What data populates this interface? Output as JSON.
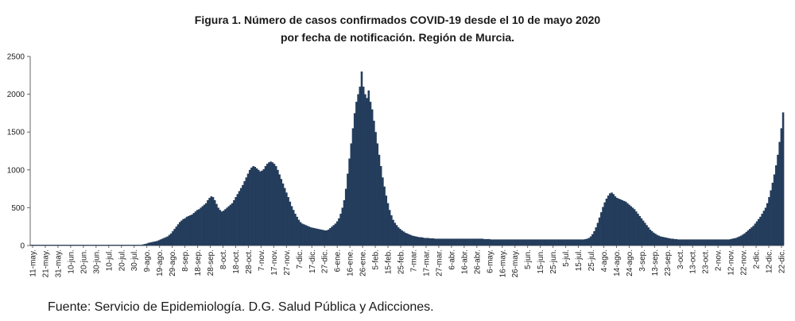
{
  "title_line1": "Figura 1. Número de casos confirmados COVID-19 desde el 10 de mayo 2020",
  "title_line2": "por fecha de notificación. Región de Murcia.",
  "source": "Fuente: Servicio de Epidemiología. D.G. Salud Pública y Adicciones.",
  "bar_color": "#243d5c",
  "chart_data": {
    "type": "bar",
    "xlabel": "",
    "ylabel": "",
    "ylim": [
      0,
      2500
    ],
    "yticks": [
      0,
      500,
      1000,
      1500,
      2000,
      2500
    ],
    "grid": false,
    "legend": "none",
    "tick_labels": [
      "11-may.",
      "21-may.",
      "31-may.",
      "10-jun.",
      "20-jun.",
      "30-jun.",
      "10-jul.",
      "20-jul.",
      "30-jul.",
      "9-ago.",
      "19-ago.",
      "29-ago.",
      "8-sep.",
      "18-sep.",
      "28-sep.",
      "8-oct.",
      "18-oct.",
      "28-oct.",
      "7-nov.",
      "17-nov.",
      "27-nov.",
      "7-dic.",
      "17-dic.",
      "27-dic.",
      "6-ene.",
      "16-ene.",
      "26-ene.",
      "5-feb.",
      "15-feb.",
      "25-feb.",
      "7-mar.",
      "17-mar.",
      "27-mar.",
      "6-abr.",
      "16-abr.",
      "26-abr.",
      "6-may.",
      "16-may.",
      "26-may.",
      "5-jun.",
      "15-jun.",
      "25-jun.",
      "5-jul.",
      "15-jul.",
      "25-jul.",
      "4-ago.",
      "14-ago.",
      "24-ago.",
      "3-sep.",
      "13-sep.",
      "23-sep.",
      "3-oct.",
      "13-oct.",
      "23-oct.",
      "2-nov.",
      "12-nov.",
      "22-nov.",
      "2-dic.",
      "12-dic.",
      "22-dic."
    ],
    "values": [
      10,
      10,
      10,
      10,
      10,
      10,
      10,
      10,
      10,
      10,
      10,
      10,
      10,
      10,
      10,
      10,
      10,
      10,
      10,
      10,
      10,
      10,
      10,
      10,
      10,
      10,
      10,
      10,
      10,
      10,
      10,
      10,
      10,
      10,
      10,
      10,
      10,
      10,
      10,
      10,
      10,
      10,
      10,
      10,
      10,
      10,
      10,
      10,
      10,
      10,
      10,
      10,
      10,
      10,
      10,
      10,
      10,
      10,
      10,
      10,
      10,
      10,
      10,
      10,
      15,
      20,
      25,
      35,
      40,
      45,
      50,
      55,
      60,
      70,
      80,
      90,
      100,
      110,
      120,
      140,
      160,
      190,
      220,
      250,
      280,
      310,
      330,
      350,
      360,
      380,
      390,
      400,
      410,
      430,
      450,
      470,
      480,
      500,
      520,
      540,
      560,
      600,
      630,
      650,
      640,
      600,
      550,
      500,
      470,
      450,
      460,
      480,
      500,
      520,
      540,
      560,
      600,
      640,
      680,
      720,
      760,
      800,
      850,
      900,
      950,
      1000,
      1030,
      1050,
      1040,
      1020,
      1000,
      980,
      990,
      1010,
      1050,
      1080,
      1100,
      1110,
      1100,
      1080,
      1050,
      1000,
      940,
      880,
      820,
      760,
      700,
      640,
      580,
      520,
      470,
      420,
      380,
      340,
      310,
      290,
      280,
      270,
      260,
      250,
      240,
      235,
      230,
      225,
      220,
      215,
      210,
      205,
      200,
      200,
      210,
      230,
      250,
      270,
      290,
      320,
      360,
      420,
      500,
      600,
      750,
      950,
      1150,
      1350,
      1550,
      1750,
      1900,
      2000,
      2100,
      2300,
      2100,
      2000,
      1950,
      2050,
      1900,
      1800,
      1650,
      1500,
      1350,
      1200,
      1050,
      900,
      780,
      660,
      560,
      470,
      400,
      340,
      300,
      270,
      240,
      220,
      200,
      185,
      170,
      160,
      150,
      140,
      130,
      125,
      120,
      115,
      110,
      110,
      105,
      100,
      100,
      100,
      95,
      95,
      95,
      90,
      90,
      90,
      90,
      90,
      90,
      90,
      90,
      90,
      90,
      90,
      90,
      90,
      90,
      90,
      90,
      90,
      90,
      90,
      90,
      90,
      90,
      90,
      90,
      90,
      90,
      90,
      90,
      85,
      85,
      85,
      85,
      80,
      80,
      80,
      80,
      80,
      80,
      80,
      80,
      80,
      80,
      80,
      80,
      80,
      80,
      80,
      80,
      80,
      80,
      80,
      80,
      80,
      80,
      80,
      80,
      80,
      80,
      80,
      80,
      80,
      80,
      80,
      80,
      80,
      80,
      80,
      80,
      80,
      80,
      80,
      80,
      80,
      80,
      80,
      80,
      80,
      80,
      80,
      80,
      80,
      80,
      80,
      80,
      80,
      80,
      85,
      90,
      100,
      120,
      150,
      190,
      240,
      300,
      370,
      440,
      510,
      570,
      620,
      660,
      690,
      700,
      680,
      650,
      630,
      620,
      610,
      600,
      590,
      580,
      560,
      540,
      520,
      500,
      480,
      450,
      420,
      390,
      360,
      330,
      300,
      270,
      240,
      210,
      190,
      170,
      155,
      140,
      130,
      120,
      115,
      110,
      105,
      100,
      95,
      90,
      90,
      85,
      85,
      80,
      80,
      80,
      80,
      80,
      80,
      80,
      80,
      80,
      80,
      80,
      80,
      80,
      80,
      80,
      80,
      80,
      80,
      80,
      80,
      80,
      80,
      80,
      80,
      80,
      80,
      80,
      80,
      80,
      80,
      85,
      90,
      95,
      100,
      110,
      120,
      130,
      145,
      160,
      180,
      200,
      220,
      240,
      260,
      290,
      320,
      350,
      380,
      420,
      460,
      500,
      560,
      640,
      730,
      830,
      940,
      1060,
      1200,
      1370,
      1550,
      1760
    ]
  }
}
